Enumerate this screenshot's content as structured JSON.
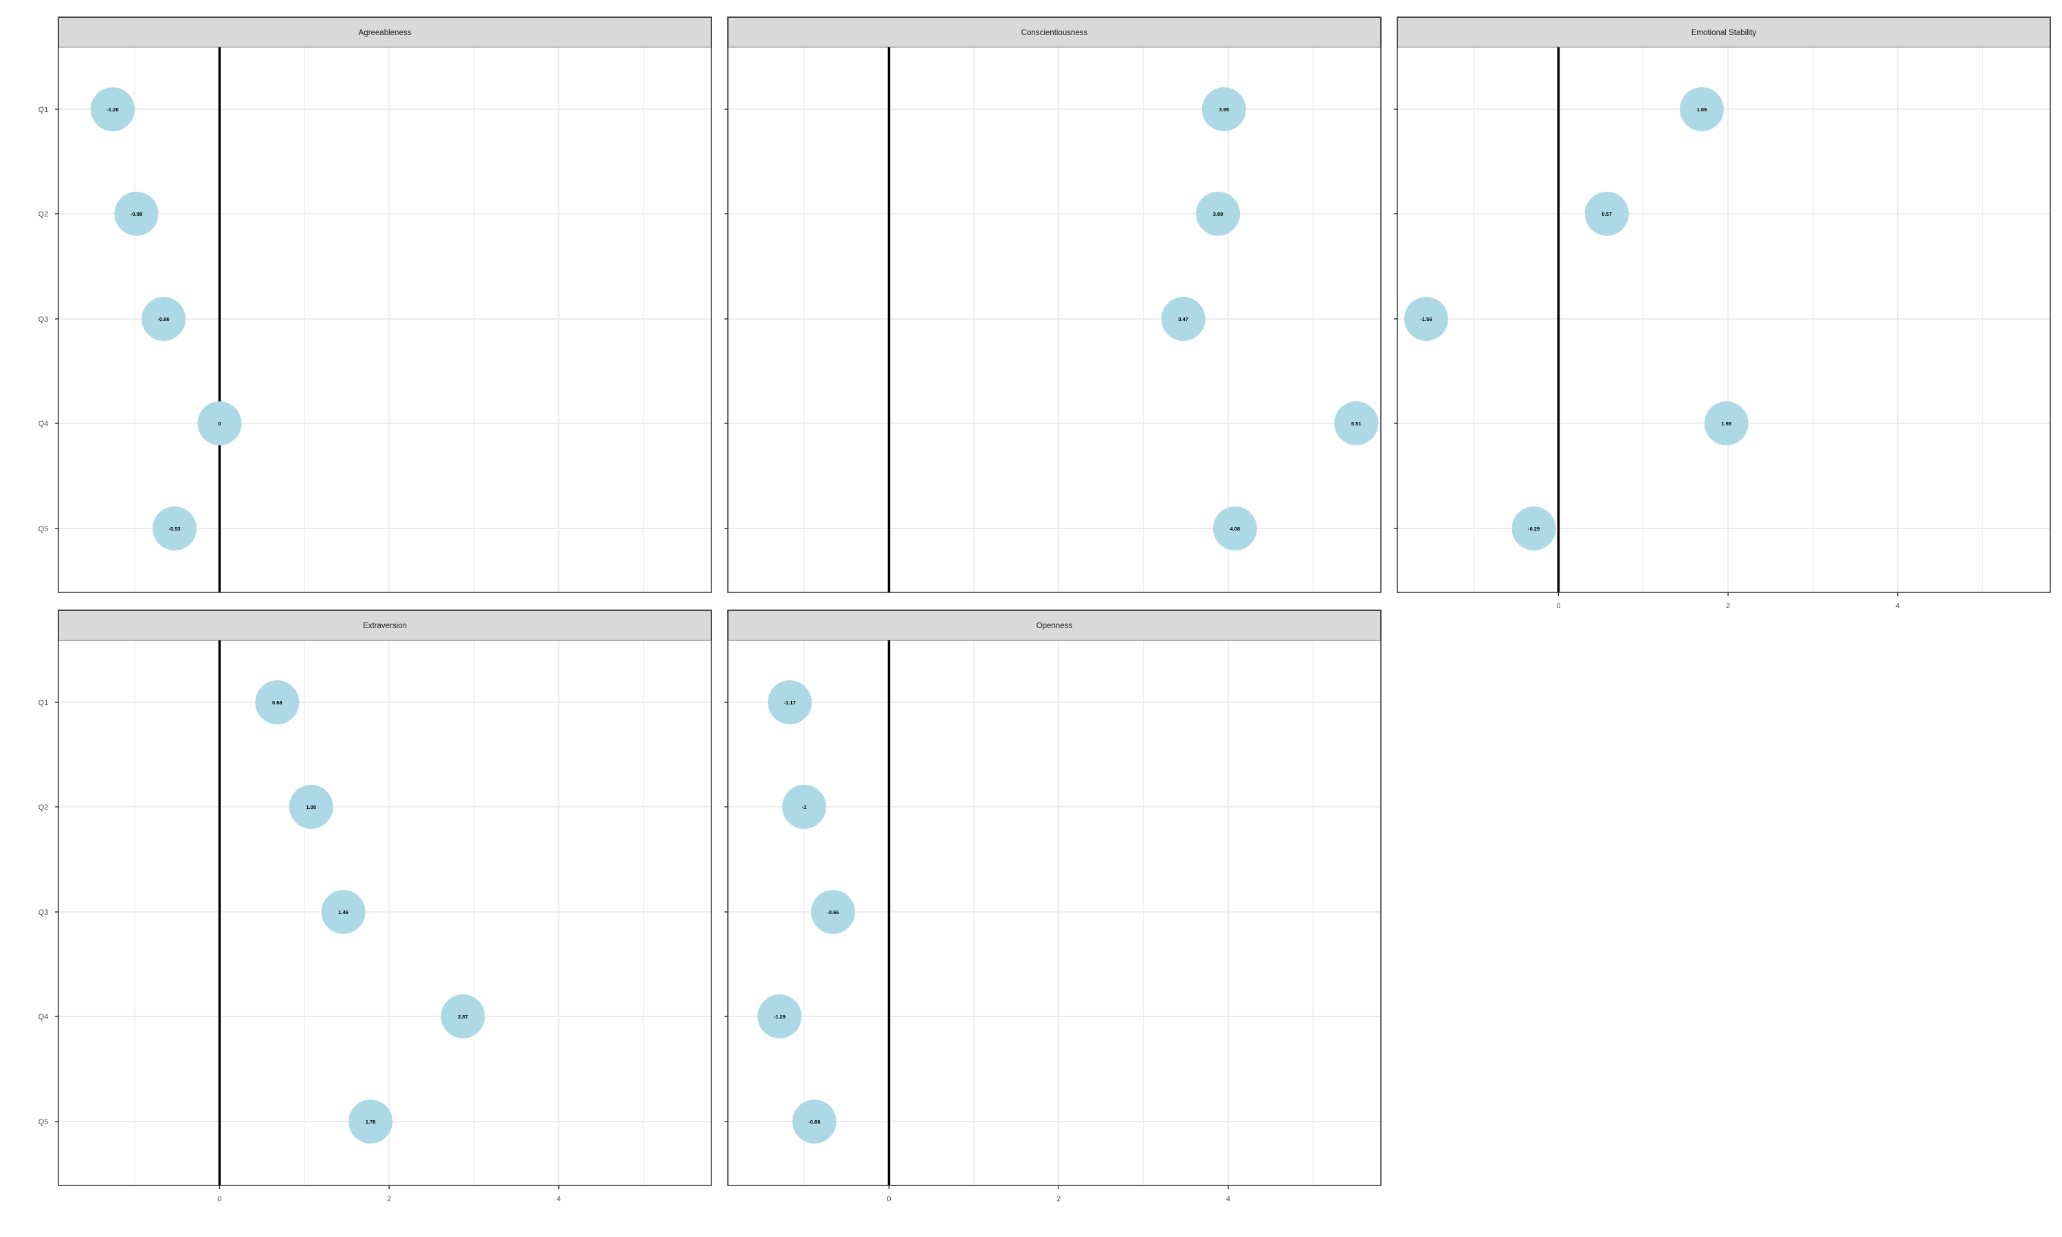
{
  "chart_data": {
    "type": "scatter",
    "facet_layout": "wrap, 3 columns",
    "x_ticks": [
      0,
      2,
      4
    ],
    "x_range": [
      -1.9,
      5.8
    ],
    "y_categories": [
      "Q1",
      "Q2",
      "Q3",
      "Q4",
      "Q5"
    ],
    "reference_line_x": 0,
    "grid": true,
    "point_color": "#add8e6",
    "panels": [
      {
        "name": "Agreeableness",
        "points": [
          {
            "q": "Q1",
            "x": -1.26,
            "label": "-1.26"
          },
          {
            "q": "Q2",
            "x": -0.98,
            "label": "-0.98"
          },
          {
            "q": "Q3",
            "x": -0.66,
            "label": "-0.66"
          },
          {
            "q": "Q4",
            "x": 0,
            "label": "0"
          },
          {
            "q": "Q5",
            "x": -0.53,
            "label": "-0.53"
          }
        ]
      },
      {
        "name": "Conscientiousness",
        "points": [
          {
            "q": "Q1",
            "x": 3.95,
            "label": "3.95"
          },
          {
            "q": "Q2",
            "x": 3.88,
            "label": "3.88"
          },
          {
            "q": "Q3",
            "x": 3.47,
            "label": "3.47"
          },
          {
            "q": "Q4",
            "x": 5.51,
            "label": "5.51"
          },
          {
            "q": "Q5",
            "x": 4.08,
            "label": "4.08"
          }
        ]
      },
      {
        "name": "Emotional Stability",
        "points": [
          {
            "q": "Q1",
            "x": 1.69,
            "label": "1.69"
          },
          {
            "q": "Q2",
            "x": 0.57,
            "label": "0.57"
          },
          {
            "q": "Q3",
            "x": -1.56,
            "label": "-1.56"
          },
          {
            "q": "Q4",
            "x": 1.98,
            "label": "1.98"
          },
          {
            "q": "Q5",
            "x": -0.29,
            "label": "-0.29"
          }
        ]
      },
      {
        "name": "Extraversion",
        "points": [
          {
            "q": "Q1",
            "x": 0.68,
            "label": "0.68"
          },
          {
            "q": "Q2",
            "x": 1.08,
            "label": "1.08"
          },
          {
            "q": "Q3",
            "x": 1.46,
            "label": "1.46"
          },
          {
            "q": "Q4",
            "x": 2.87,
            "label": "2.87"
          },
          {
            "q": "Q5",
            "x": 1.78,
            "label": "1.78"
          }
        ]
      },
      {
        "name": "Openness",
        "points": [
          {
            "q": "Q1",
            "x": -1.17,
            "label": "-1.17"
          },
          {
            "q": "Q2",
            "x": -1,
            "label": "-1"
          },
          {
            "q": "Q3",
            "x": -0.66,
            "label": "-0.66"
          },
          {
            "q": "Q4",
            "x": -1.29,
            "label": "-1.29"
          },
          {
            "q": "Q5",
            "x": -0.88,
            "label": "-0.88"
          }
        ]
      }
    ]
  }
}
